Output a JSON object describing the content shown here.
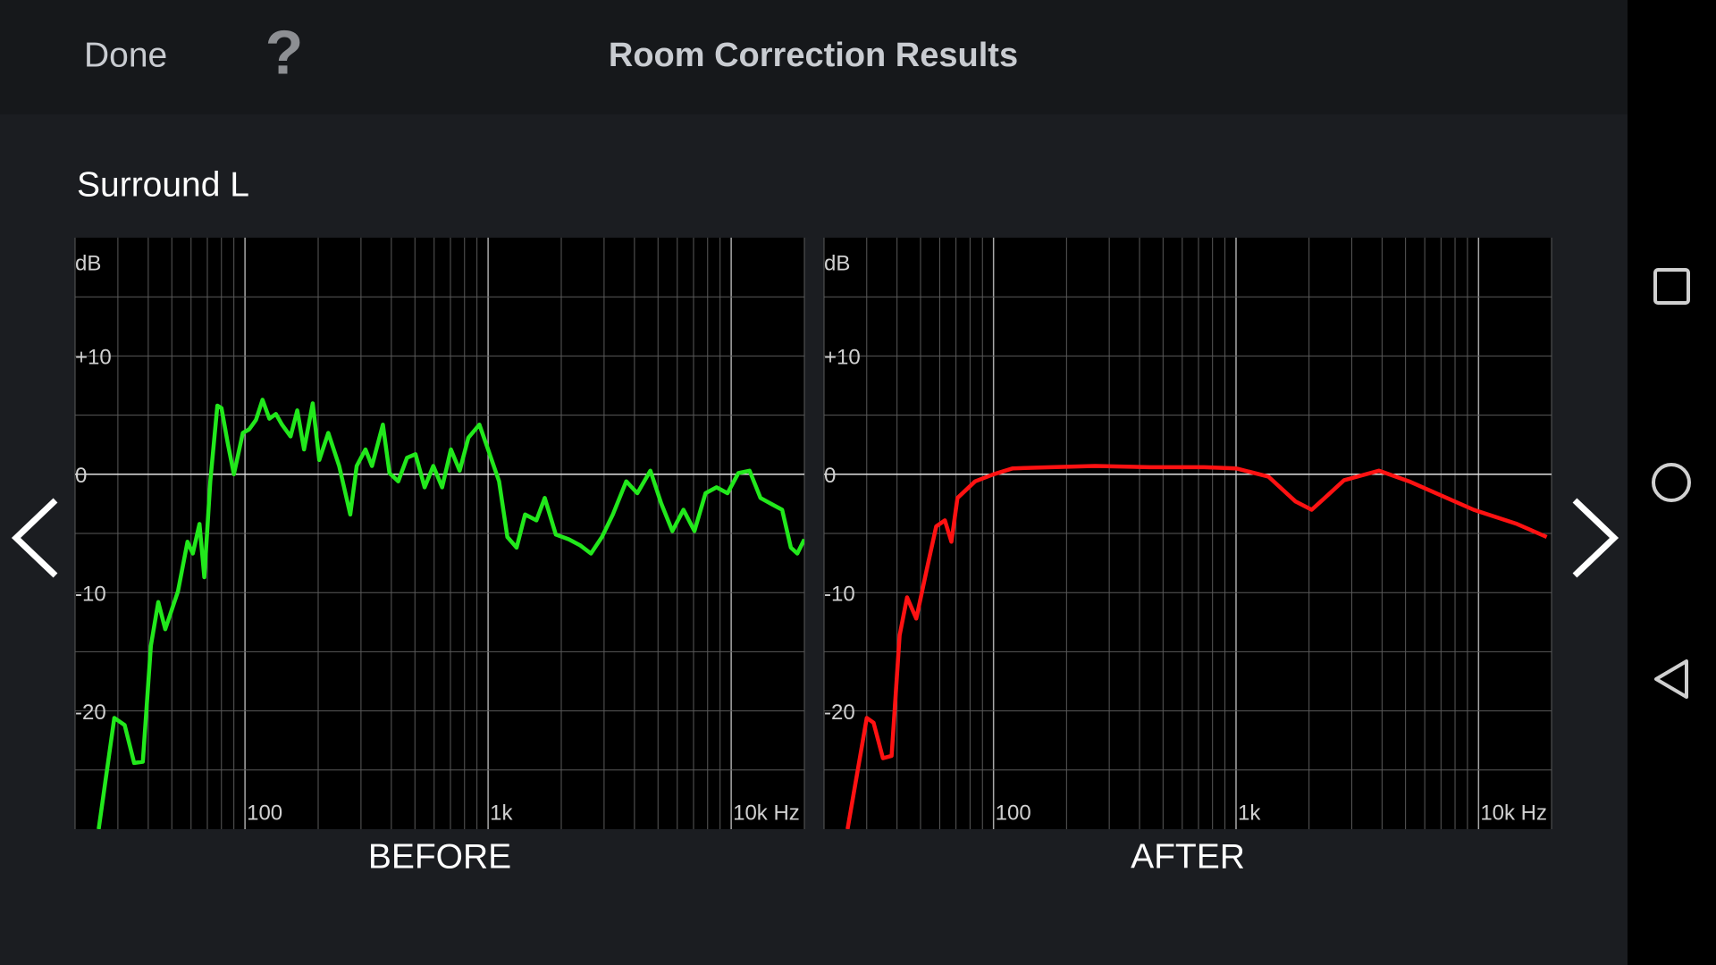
{
  "header": {
    "done": "Done",
    "help": "?",
    "title": "Room Correction Results"
  },
  "channel": "Surround L",
  "chart_data": [
    {
      "type": "line",
      "title": "BEFORE",
      "ylabel": "dB",
      "color": "#22e81c",
      "xscale": "log",
      "xlim": [
        20,
        20000
      ],
      "ylim": [
        -30,
        20
      ],
      "xticks": [
        100,
        {
          "value": 1000,
          "label": "1k"
        },
        {
          "value": 10000,
          "label": "10k Hz"
        }
      ],
      "yticks": [
        {
          "value": 10,
          "label": "+10"
        },
        0,
        -10,
        -20
      ],
      "xgrid": [
        20,
        30,
        40,
        50,
        60,
        70,
        80,
        90,
        100,
        200,
        300,
        400,
        500,
        600,
        700,
        800,
        900,
        1000,
        2000,
        3000,
        4000,
        5000,
        6000,
        7000,
        8000,
        9000,
        10000,
        20000
      ],
      "ygrid": [
        15,
        10,
        5,
        0,
        -5,
        -10,
        -15,
        -20,
        -25
      ],
      "x": [
        25,
        29,
        32,
        35,
        38,
        41,
        44,
        47,
        53,
        58,
        61,
        65,
        68,
        72,
        77,
        80,
        85,
        90,
        98,
        104,
        111,
        118,
        126,
        134,
        142,
        154,
        164,
        175,
        190,
        202,
        220,
        244,
        271,
        288,
        313,
        333,
        369,
        393,
        427,
        464,
        503,
        548,
        595,
        647,
        703,
        764,
        830,
        921,
        1000,
        1110,
        1200,
        1310,
        1420,
        1580,
        1710,
        1900,
        2150,
        2390,
        2650,
        2940,
        3260,
        3700,
        4110,
        4650,
        5160,
        5730,
        6360,
        7060,
        7840,
        8700,
        9660,
        10700,
        11900,
        13200,
        14600,
        16200,
        17600,
        18700,
        20000
      ],
      "values": [
        -30,
        -20.6,
        -21.2,
        -24.4,
        -24.3,
        -14.5,
        -10.8,
        -13.1,
        -9.9,
        -5.7,
        -6.7,
        -4.2,
        -8.7,
        -0.6,
        5.8,
        5.6,
        2.6,
        0,
        3.5,
        3.8,
        4.6,
        6.3,
        4.7,
        5.1,
        4.2,
        3.2,
        5.4,
        2.1,
        6.0,
        1.2,
        3.5,
        0.7,
        -3.4,
        0.7,
        2.1,
        0.7,
        4.2,
        0.1,
        -0.6,
        1.4,
        1.7,
        -1.1,
        0.7,
        -1.1,
        2.1,
        0.3,
        3.1,
        4.2,
        2.1,
        -0.6,
        -5.3,
        -6.2,
        -3.4,
        -3.9,
        -2.0,
        -5.1,
        -5.5,
        -6.0,
        -6.7,
        -5.3,
        -3.4,
        -0.6,
        -1.6,
        0.3,
        -2.5,
        -4.8,
        -3.0,
        -4.8,
        -1.6,
        -1.1,
        -1.6,
        0.1,
        0.3,
        -2.0,
        -2.5,
        -3.0,
        -6.2,
        -6.7,
        -5.5
      ]
    },
    {
      "type": "line",
      "title": "AFTER",
      "ylabel": "dB",
      "color": "#ff1212",
      "xscale": "log",
      "xlim": [
        20,
        20000
      ],
      "ylim": [
        -30,
        20
      ],
      "xticks": [
        100,
        {
          "value": 1000,
          "label": "1k"
        },
        {
          "value": 10000,
          "label": "10k Hz"
        }
      ],
      "yticks": [
        {
          "value": 10,
          "label": "+10"
        },
        0,
        -10,
        -20
      ],
      "xgrid": [
        20,
        30,
        40,
        50,
        60,
        70,
        80,
        90,
        100,
        200,
        300,
        400,
        500,
        600,
        700,
        800,
        900,
        1000,
        2000,
        3000,
        4000,
        5000,
        6000,
        7000,
        8000,
        9000,
        10000,
        20000
      ],
      "ygrid": [
        15,
        10,
        5,
        0,
        -5,
        -10,
        -15,
        -20,
        -25
      ],
      "x": [
        25,
        30,
        32,
        35,
        38,
        41,
        44,
        48,
        53,
        58,
        63,
        67,
        71,
        84,
        100,
        120,
        173,
        262,
        440,
        739,
        1000,
        1360,
        1760,
        2050,
        2320,
        2790,
        3880,
        5170,
        7020,
        9540,
        14400,
        19100
      ],
      "values": [
        -30,
        -20.6,
        -21,
        -24,
        -23.8,
        -13.6,
        -10.4,
        -12.2,
        -8.1,
        -4.4,
        -3.9,
        -5.7,
        -2.0,
        -0.6,
        0,
        0.5,
        0.6,
        0.7,
        0.6,
        0.6,
        0.5,
        -0.2,
        -2.3,
        -3.0,
        -2.0,
        -0.5,
        0.3,
        -0.6,
        -1.8,
        -3.0,
        -4.2,
        -5.3
      ]
    }
  ]
}
